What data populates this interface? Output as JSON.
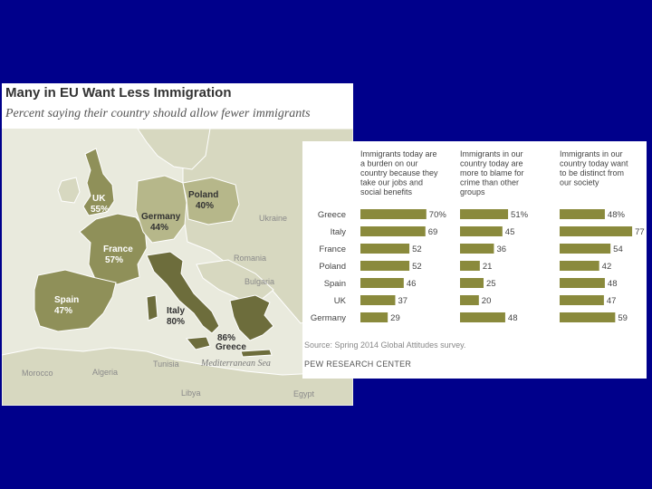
{
  "colors": {
    "slide_bg": "#00008b",
    "bar": "#8a8a3c",
    "map_dark": "#6d6d3c",
    "map_mid": "#8f9059",
    "map_light": "#b6b78a",
    "map_other": "#d7d8c0",
    "sea": "#ffffff"
  },
  "map": {
    "title": "Many in EU Want Less Immigration",
    "subtitle": "Percent saying their country should allow fewer immigrants",
    "countries": [
      {
        "name": "UK",
        "pct": "55%"
      },
      {
        "name": "Poland",
        "pct": "40%"
      },
      {
        "name": "Germany",
        "pct": "44%"
      },
      {
        "name": "France",
        "pct": "57%"
      },
      {
        "name": "Spain",
        "pct": "47%"
      },
      {
        "name": "Italy",
        "pct": "80%"
      },
      {
        "name": "Greece",
        "pct": "86%"
      }
    ],
    "background_labels": {
      "ukraine": "Ukraine",
      "romania": "Romania",
      "bulgaria": "Bulgaria",
      "morocco": "Morocco",
      "algeria": "Algeria",
      "tunisia": "Tunisia",
      "libya": "Libya",
      "egypt": "Egypt",
      "sea": "Mediterranean Sea"
    }
  },
  "chart_data": {
    "type": "bar",
    "categories": [
      "Greece",
      "Italy",
      "France",
      "Poland",
      "Spain",
      "UK",
      "Germany"
    ],
    "series": [
      {
        "name": "Immigrants today are a burden on our country because they take our jobs and social benefits",
        "values": [
          70,
          69,
          52,
          52,
          46,
          37,
          29
        ],
        "labels": [
          "70%",
          "69",
          "52",
          "52",
          "46",
          "37",
          "29"
        ]
      },
      {
        "name": "Immigrants in our country today are more to blame for crime than other groups",
        "values": [
          51,
          45,
          36,
          21,
          25,
          20,
          48
        ],
        "labels": [
          "51%",
          "45",
          "36",
          "21",
          "25",
          "20",
          "48"
        ]
      },
      {
        "name": "Immigrants in our country today want to be distinct from our society",
        "values": [
          48,
          77,
          54,
          42,
          48,
          47,
          59
        ],
        "labels": [
          "48%",
          "77",
          "54",
          "42",
          "48",
          "47",
          "59"
        ]
      }
    ],
    "column_heads": [
      [
        "Immigrants today are",
        "a burden on our",
        "country because they",
        "take our jobs and",
        "social benefits"
      ],
      [
        "Immigrants in our",
        "country today are",
        "more to blame for",
        "crime than other",
        "groups"
      ],
      [
        "Immigrants in our",
        "country today want",
        "to be distinct from",
        "our society"
      ]
    ],
    "source": "Source: Spring 2014 Global Attitudes survey.",
    "credit": "PEW RESEARCH CENTER"
  }
}
